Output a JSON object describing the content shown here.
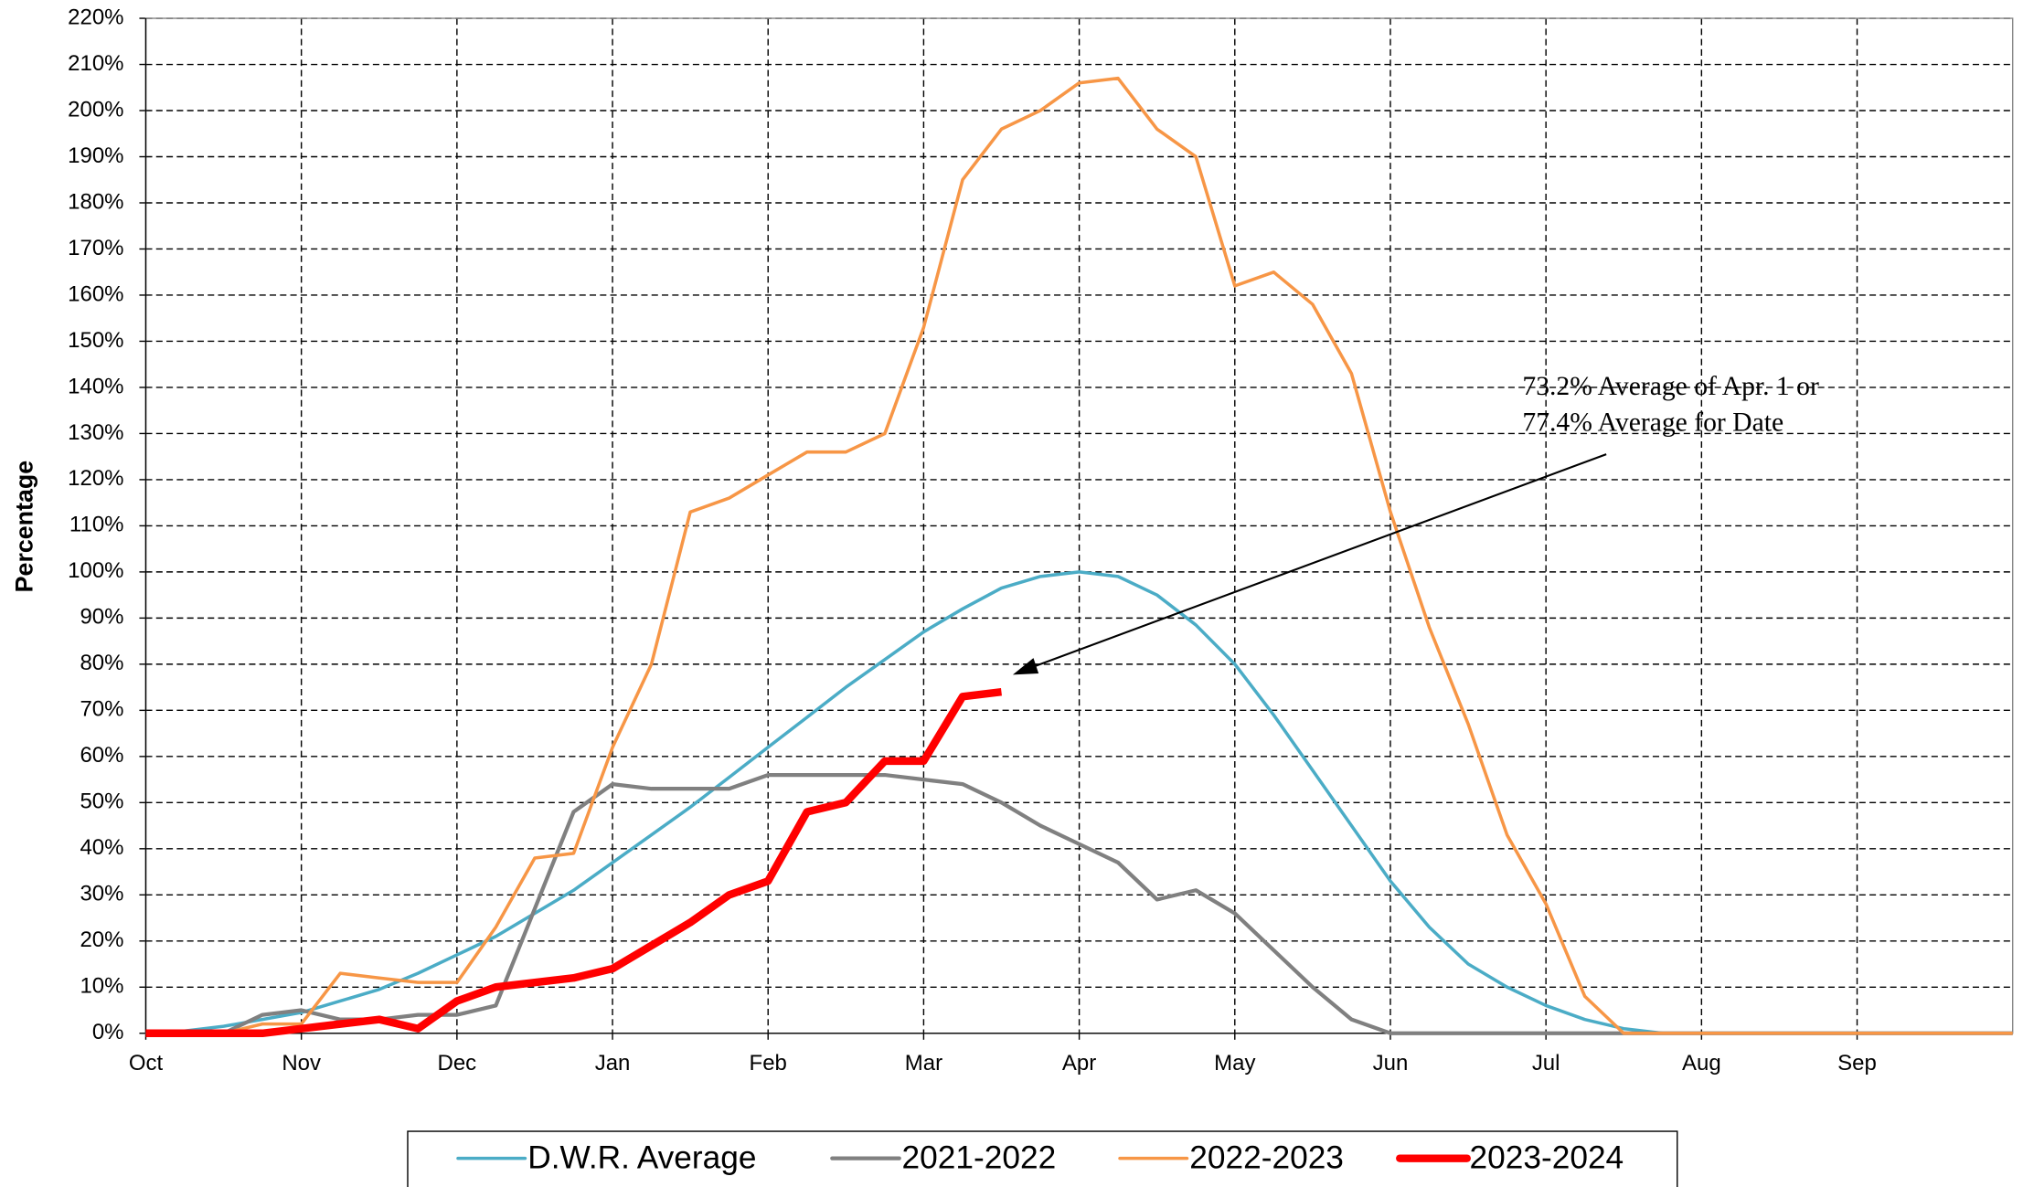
{
  "chart_data": {
    "type": "line",
    "y_label": "Percentage",
    "categories": [
      "Oct",
      null,
      null,
      null,
      "Nov",
      null,
      null,
      null,
      "Dec",
      null,
      null,
      null,
      "Jan",
      null,
      null,
      null,
      "Feb",
      null,
      null,
      null,
      "Mar",
      null,
      null,
      null,
      "Apr",
      null,
      null,
      null,
      "May",
      null,
      null,
      null,
      "Jun",
      null,
      null,
      null,
      "Jul",
      null,
      null,
      null,
      "Aug",
      null,
      null,
      null,
      "Sep",
      null,
      null,
      null,
      null
    ],
    "ylim": [
      0,
      220
    ],
    "yticks": [
      {
        "value": 0,
        "label": "0%"
      },
      {
        "value": 10,
        "label": "10%"
      },
      {
        "value": 20,
        "label": "20%"
      },
      {
        "value": 30,
        "label": "30%"
      },
      {
        "value": 40,
        "label": "40%"
      },
      {
        "value": 50,
        "label": "50%"
      },
      {
        "value": 60,
        "label": "60%"
      },
      {
        "value": 70,
        "label": "70%"
      },
      {
        "value": 80,
        "label": "80%"
      },
      {
        "value": 90,
        "label": "90%"
      },
      {
        "value": 100,
        "label": "100%"
      },
      {
        "value": 110,
        "label": "110%"
      },
      {
        "value": 120,
        "label": "120%"
      },
      {
        "value": 130,
        "label": "130%"
      },
      {
        "value": 140,
        "label": "140%"
      },
      {
        "value": 150,
        "label": "150%"
      },
      {
        "value": 160,
        "label": "160%"
      },
      {
        "value": 170,
        "label": "170%"
      },
      {
        "value": 180,
        "label": "180%"
      },
      {
        "value": 190,
        "label": "190%"
      },
      {
        "value": 200,
        "label": "200%"
      },
      {
        "value": 210,
        "label": "210%"
      },
      {
        "value": 220,
        "label": "220%"
      }
    ],
    "grid": true,
    "series": [
      {
        "name": "D.W.R. Average",
        "color": "#4bacc6",
        "values": [
          0,
          0.5,
          1.5,
          3,
          4.5,
          7,
          9.5,
          13,
          17,
          21,
          26,
          31,
          37,
          43,
          49,
          55.5,
          62,
          68.5,
          75,
          81,
          87,
          92,
          96.5,
          99,
          100,
          99,
          95,
          88.5,
          80,
          69,
          57,
          45,
          33,
          23,
          15,
          10,
          6,
          3,
          1,
          0,
          0,
          0,
          0,
          0,
          0,
          0,
          0,
          0,
          0
        ]
      },
      {
        "name": "2021-2022",
        "color": "#808080",
        "values": [
          0,
          0,
          0,
          4,
          5,
          3,
          3,
          4,
          4,
          6,
          27,
          48,
          54,
          53,
          53,
          53,
          56,
          56,
          56,
          56,
          55,
          54,
          50,
          45,
          41,
          37,
          29,
          31,
          26,
          18,
          10,
          3,
          0,
          0,
          0,
          0,
          0,
          0,
          0,
          0,
          0,
          0,
          0,
          0,
          0,
          0,
          0,
          0,
          0
        ]
      },
      {
        "name": "2022-2023",
        "color": "#f79646",
        "values": [
          0,
          0,
          0,
          2,
          2,
          13,
          12,
          11,
          11,
          23,
          38,
          39,
          62,
          80,
          113,
          116,
          121,
          126,
          126,
          130,
          153,
          185,
          196,
          200,
          206,
          207,
          196,
          190,
          162,
          165,
          158,
          143,
          113,
          88,
          67,
          43,
          28,
          8,
          0,
          0,
          0,
          0,
          0,
          0,
          0,
          0,
          0,
          0,
          0
        ]
      },
      {
        "name": "2023-2024",
        "color": "#ff0000",
        "values": [
          0,
          0,
          0,
          0,
          1,
          2,
          3,
          1,
          7,
          10,
          11,
          12,
          14,
          19,
          24,
          30,
          33,
          48,
          50,
          59,
          59,
          73,
          74,
          null,
          null,
          null,
          null,
          null,
          null,
          null,
          null,
          null,
          null,
          null,
          null,
          null,
          null,
          null,
          null,
          null,
          null,
          null,
          null,
          null,
          null,
          null,
          null,
          null,
          null
        ]
      }
    ],
    "annotation": [
      "73.2% Average of Apr. 1 or",
      "77.4% Average for Date"
    ]
  }
}
